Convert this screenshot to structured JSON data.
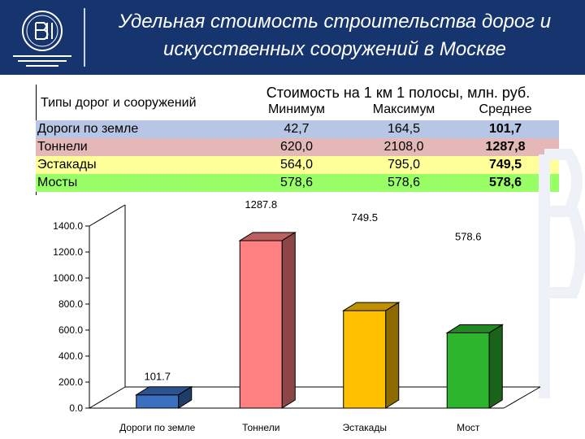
{
  "header": {
    "title_line1": "Удельная стоимость строительства дорог и",
    "title_line2": "искусственных сооружений в Москве"
  },
  "table": {
    "types_header": "Типы дорог и сооружений",
    "group_header": "Стоимость на 1 км 1 полосы, млн. руб.",
    "columns": [
      "Минимум",
      "Максимум",
      "Среднее"
    ],
    "rows": [
      {
        "name": "Дороги по земле",
        "values": [
          "42,7",
          "164,5",
          "101,7"
        ],
        "bg": "#b7c6e5"
      },
      {
        "name": "Тоннели",
        "values": [
          "620,0",
          "2108,0",
          "1287,8"
        ],
        "bg": "#e5b8b8"
      },
      {
        "name": "Эстакады",
        "values": [
          "564,0",
          "795,0",
          "749,5"
        ],
        "bg": "#ffff99"
      },
      {
        "name": "Мосты",
        "values": [
          "578,6",
          "578,6",
          "578,6"
        ],
        "bg": "#99ff66"
      }
    ]
  },
  "chart_data": {
    "type": "bar",
    "categories": [
      "Дороги по земле",
      "Тоннели",
      "Эстакады",
      "Мост"
    ],
    "values": [
      101.7,
      1287.8,
      749.5,
      578.6
    ],
    "data_labels": [
      "101.7",
      "1287.8",
      "749.5",
      "578.6"
    ],
    "y_ticks": [
      "0.0",
      "200.0",
      "400.0",
      "600.0",
      "800.0",
      "1000.0",
      "1200.0",
      "1400.0"
    ],
    "ylim": [
      0,
      1400
    ],
    "colors": [
      "#3b6fc0",
      "#ff8080",
      "#ffc000",
      "#2db52d"
    ],
    "grid": false,
    "style": "3d"
  }
}
